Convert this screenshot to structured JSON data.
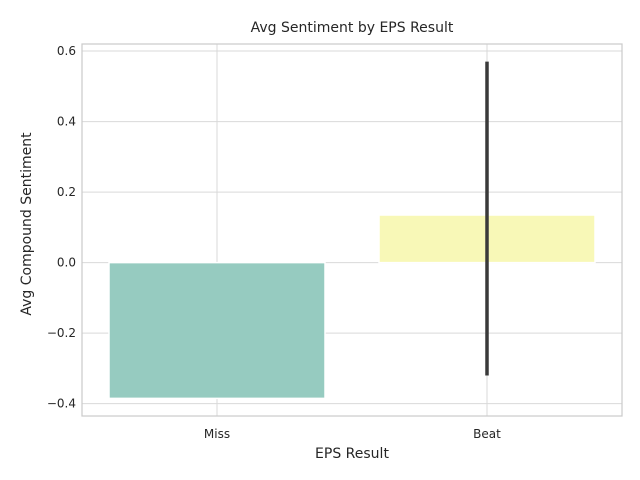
{
  "chart_data": {
    "type": "bar",
    "title": "Avg Sentiment by EPS Result",
    "xlabel": "EPS Result",
    "ylabel": "Avg Compound Sentiment",
    "categories": [
      "Miss",
      "Beat"
    ],
    "values": [
      -0.385,
      0.135
    ],
    "error_bars": [
      null,
      [
        -0.32,
        0.57
      ]
    ],
    "ylim": [
      -0.435,
      0.62
    ],
    "yticks": [
      -0.4,
      -0.2,
      0.0,
      0.2,
      0.4,
      0.6
    ],
    "ytick_labels": [
      "−0.4",
      "−0.2",
      "0.0",
      "0.2",
      "0.4",
      "0.6"
    ],
    "grid": true,
    "colors": {
      "bars": [
        "#96cbc0",
        "#f8f8b7"
      ],
      "grid": "#d9d9d9",
      "spine": "#cccccc",
      "error_bar": "#3a3a3a"
    }
  }
}
